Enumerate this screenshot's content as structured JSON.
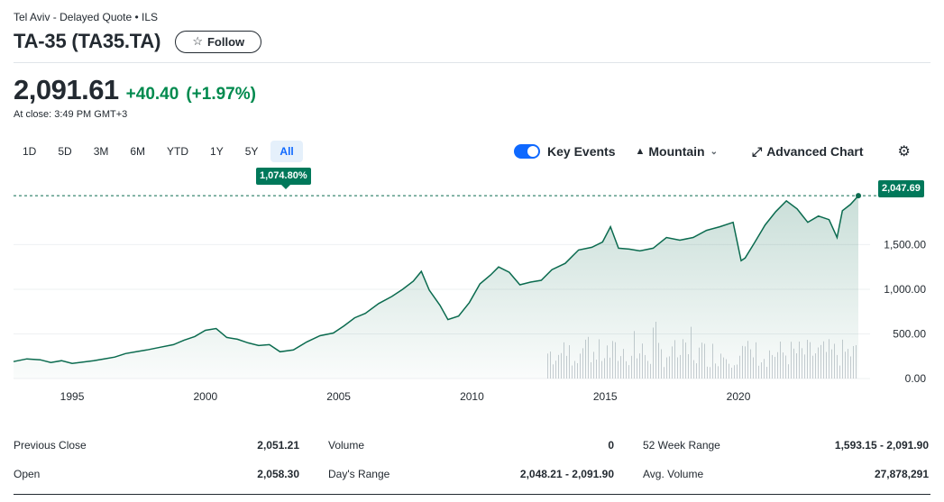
{
  "header": {
    "exchange": "Tel Aviv - Delayed Quote • ILS",
    "title": "TA-35 (TA35.TA)",
    "follow_label": "Follow"
  },
  "quote": {
    "price": "2,091.61",
    "change": "+40.40",
    "change_pct": "(+1.97%)",
    "close_time": "At close: 3:49 PM GMT+3"
  },
  "ranges": [
    "1D",
    "5D",
    "3M",
    "6M",
    "YTD",
    "1Y",
    "5Y",
    "All"
  ],
  "active_range": "All",
  "toolbar": {
    "key_events": "Key Events",
    "chart_type": "Mountain",
    "advanced": "Advanced Chart",
    "key_events_on": true
  },
  "badges": {
    "period_change": "1,074.80%",
    "last_price": "2,047.69"
  },
  "colors": {
    "accent": "#0f69ff",
    "positive": "#008a4e",
    "line": "#0b6b4f",
    "badge": "#00785a"
  },
  "chart_data": {
    "type": "area",
    "y_ticks": [
      "1,500.00",
      "1,000.00",
      "500.00",
      "0.00"
    ],
    "x_ticks": [
      "1995",
      "2000",
      "2005",
      "2010",
      "2015",
      "2020"
    ],
    "ylim": [
      0,
      2100
    ],
    "xlim": [
      1992.8,
      2024.6
    ],
    "reference_line": 2047.69,
    "series": [
      {
        "x": [
          1992.8,
          1993.3,
          1993.8,
          1994.2,
          1994.6,
          1995.0,
          1995.4,
          1995.8,
          1996.2,
          1996.6,
          1997.0,
          1997.4,
          1997.8,
          1998.3,
          1998.8,
          1999.2,
          1999.6,
          2000.0,
          2000.4,
          2000.8,
          2001.2,
          2001.6,
          2002.0,
          2002.4,
          2002.8,
          2003.3,
          2003.8,
          2004.3,
          2004.8,
          2005.2,
          2005.6,
          2006.0,
          2006.5,
          2007.0,
          2007.4,
          2007.8,
          2008.1,
          2008.4,
          2008.8,
          2009.1,
          2009.5,
          2009.9,
          2010.3,
          2010.7,
          2011.0,
          2011.4,
          2011.8,
          2012.2,
          2012.6,
          2013.0,
          2013.5,
          2014.0,
          2014.5,
          2014.9,
          2015.2,
          2015.5,
          2015.9,
          2016.3,
          2016.8,
          2017.3,
          2017.8,
          2018.3,
          2018.8,
          2019.3,
          2019.8,
          2020.1,
          2020.25,
          2020.6,
          2021.0,
          2021.4,
          2021.8,
          2022.2,
          2022.6,
          2023.0,
          2023.4,
          2023.7,
          2023.9,
          2024.2,
          2024.5
        ],
        "y": [
          190,
          220,
          210,
          180,
          200,
          170,
          185,
          200,
          220,
          240,
          280,
          300,
          320,
          350,
          380,
          430,
          470,
          540,
          560,
          460,
          440,
          400,
          370,
          380,
          300,
          320,
          410,
          480,
          510,
          590,
          680,
          730,
          840,
          920,
          1000,
          1090,
          1200,
          990,
          820,
          660,
          700,
          850,
          1060,
          1160,
          1250,
          1190,
          1050,
          1080,
          1100,
          1220,
          1290,
          1440,
          1470,
          1530,
          1700,
          1460,
          1450,
          1430,
          1460,
          1580,
          1550,
          1580,
          1660,
          1700,
          1750,
          1320,
          1350,
          1520,
          1720,
          1870,
          1990,
          1900,
          1750,
          1820,
          1780,
          1580,
          1880,
          1950,
          2047.69
        ]
      }
    ]
  },
  "stats": [
    [
      {
        "label": "Previous Close",
        "value": "2,051.21"
      },
      {
        "label": "Volume",
        "value": "0"
      },
      {
        "label": "52 Week Range",
        "value": "1,593.15 - 2,091.90"
      }
    ],
    [
      {
        "label": "Open",
        "value": "2,058.30"
      },
      {
        "label": "Day's Range",
        "value": "2,048.21 - 2,091.90"
      },
      {
        "label": "Avg. Volume",
        "value": "27,878,291"
      }
    ]
  ]
}
